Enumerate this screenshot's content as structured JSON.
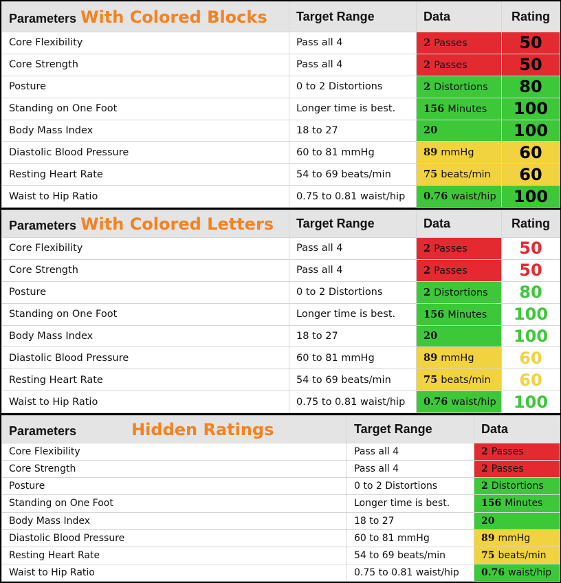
{
  "headers": {
    "parameters": "Parameters",
    "target_range": "Target Range",
    "data": "Data",
    "rating": "Rating"
  },
  "panels": [
    {
      "subtitle": "With Colored Blocks",
      "rating_style": "blocks"
    },
    {
      "subtitle": "With Colored Letters",
      "rating_style": "letters"
    },
    {
      "subtitle": "Hidden Ratings",
      "rating_style": "hidden"
    }
  ],
  "rows": [
    {
      "parameter": "Core Flexibility",
      "target": "Pass all 4",
      "value": "2",
      "unit": "Passes",
      "rating": "50",
      "status": "red"
    },
    {
      "parameter": "Core Strength",
      "target": "Pass all 4",
      "value": "2",
      "unit": "Passes",
      "rating": "50",
      "status": "red"
    },
    {
      "parameter": "Posture",
      "target": "0 to 2 Distortions",
      "value": "2",
      "unit": "Distortions",
      "rating": "80",
      "status": "green"
    },
    {
      "parameter": "Standing on One Foot",
      "target": "Longer time is best.",
      "value": "156",
      "unit": "Minutes",
      "rating": "100",
      "status": "green"
    },
    {
      "parameter": "Body Mass Index",
      "target": "18 to 27",
      "value": "20",
      "unit": "",
      "rating": "100",
      "status": "green"
    },
    {
      "parameter": "Diastolic Blood Pressure",
      "target": "60 to 81 mmHg",
      "value": "89",
      "unit": "mmHg",
      "rating": "60",
      "status": "yellow"
    },
    {
      "parameter": "Resting Heart Rate",
      "target": "54 to 69 beats/min",
      "value": "75",
      "unit": "beats/min",
      "rating": "60",
      "status": "yellow"
    },
    {
      "parameter": "Waist to Hip Ratio",
      "target": "0.75 to 0.81 waist/hip",
      "value": "0.76",
      "unit": "waist/hip",
      "rating": "100",
      "status": "green"
    }
  ],
  "status_colors": {
    "red": "#e32a31",
    "green": "#3dc83a",
    "yellow": "#f1d23f"
  }
}
